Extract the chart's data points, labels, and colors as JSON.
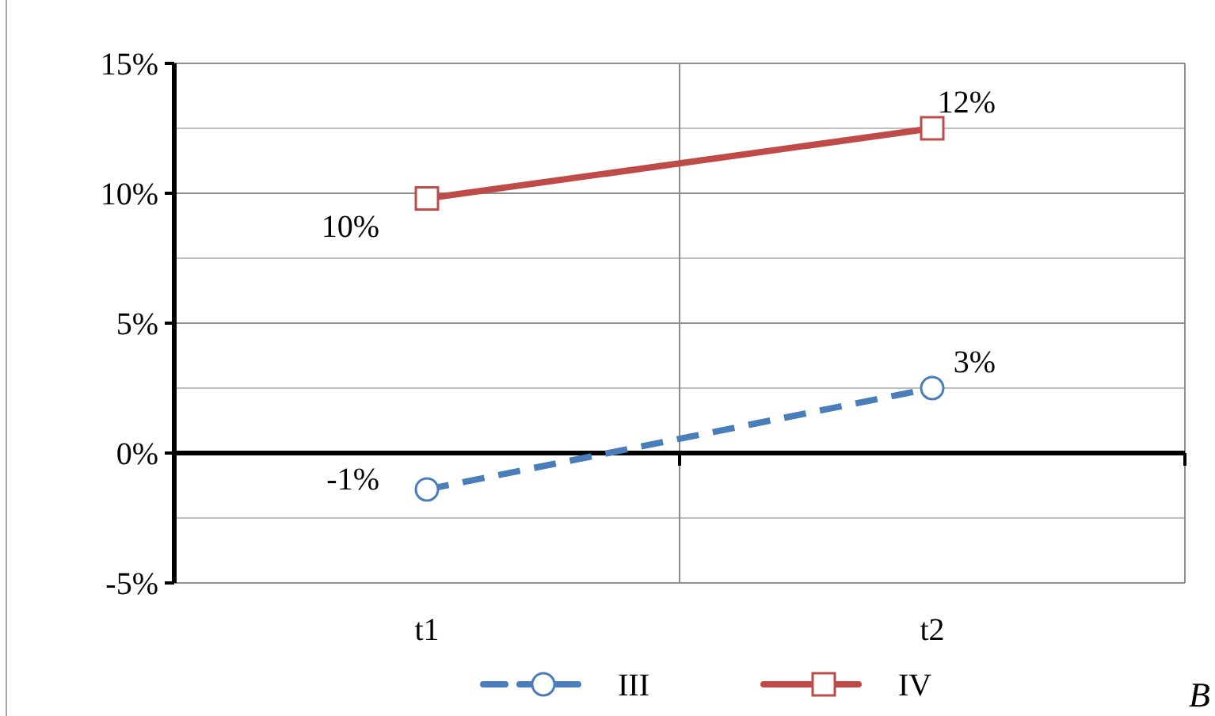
{
  "chart_data": {
    "type": "line",
    "categories": [
      "t1",
      "t2"
    ],
    "series": [
      {
        "name": "III",
        "color": "#4a7ebb",
        "values": [
          -1.4,
          2.5
        ],
        "marker": "circle",
        "line_style": "dashed",
        "value_labels": [
          "-1%",
          "3%"
        ]
      },
      {
        "name": "IV",
        "color": "#be4b48",
        "values": [
          9.8,
          12.5
        ],
        "marker": "square",
        "line_style": "solid",
        "value_labels": [
          "10%",
          "12%"
        ]
      }
    ],
    "ylim": [
      -5,
      15
    ],
    "yticks": [
      {
        "value": -5,
        "label": "-5%"
      },
      {
        "value": -2.5,
        "label": null
      },
      {
        "value": 0,
        "label": "0%"
      },
      {
        "value": 2.5,
        "label": null
      },
      {
        "value": 5,
        "label": "5%"
      },
      {
        "value": 7.5,
        "label": null
      },
      {
        "value": 10,
        "label": "10%"
      },
      {
        "value": 12.5,
        "label": null
      },
      {
        "value": 15,
        "label": "15%"
      }
    ],
    "grid": true,
    "legend": "bottom",
    "annotations": [
      "B"
    ]
  }
}
